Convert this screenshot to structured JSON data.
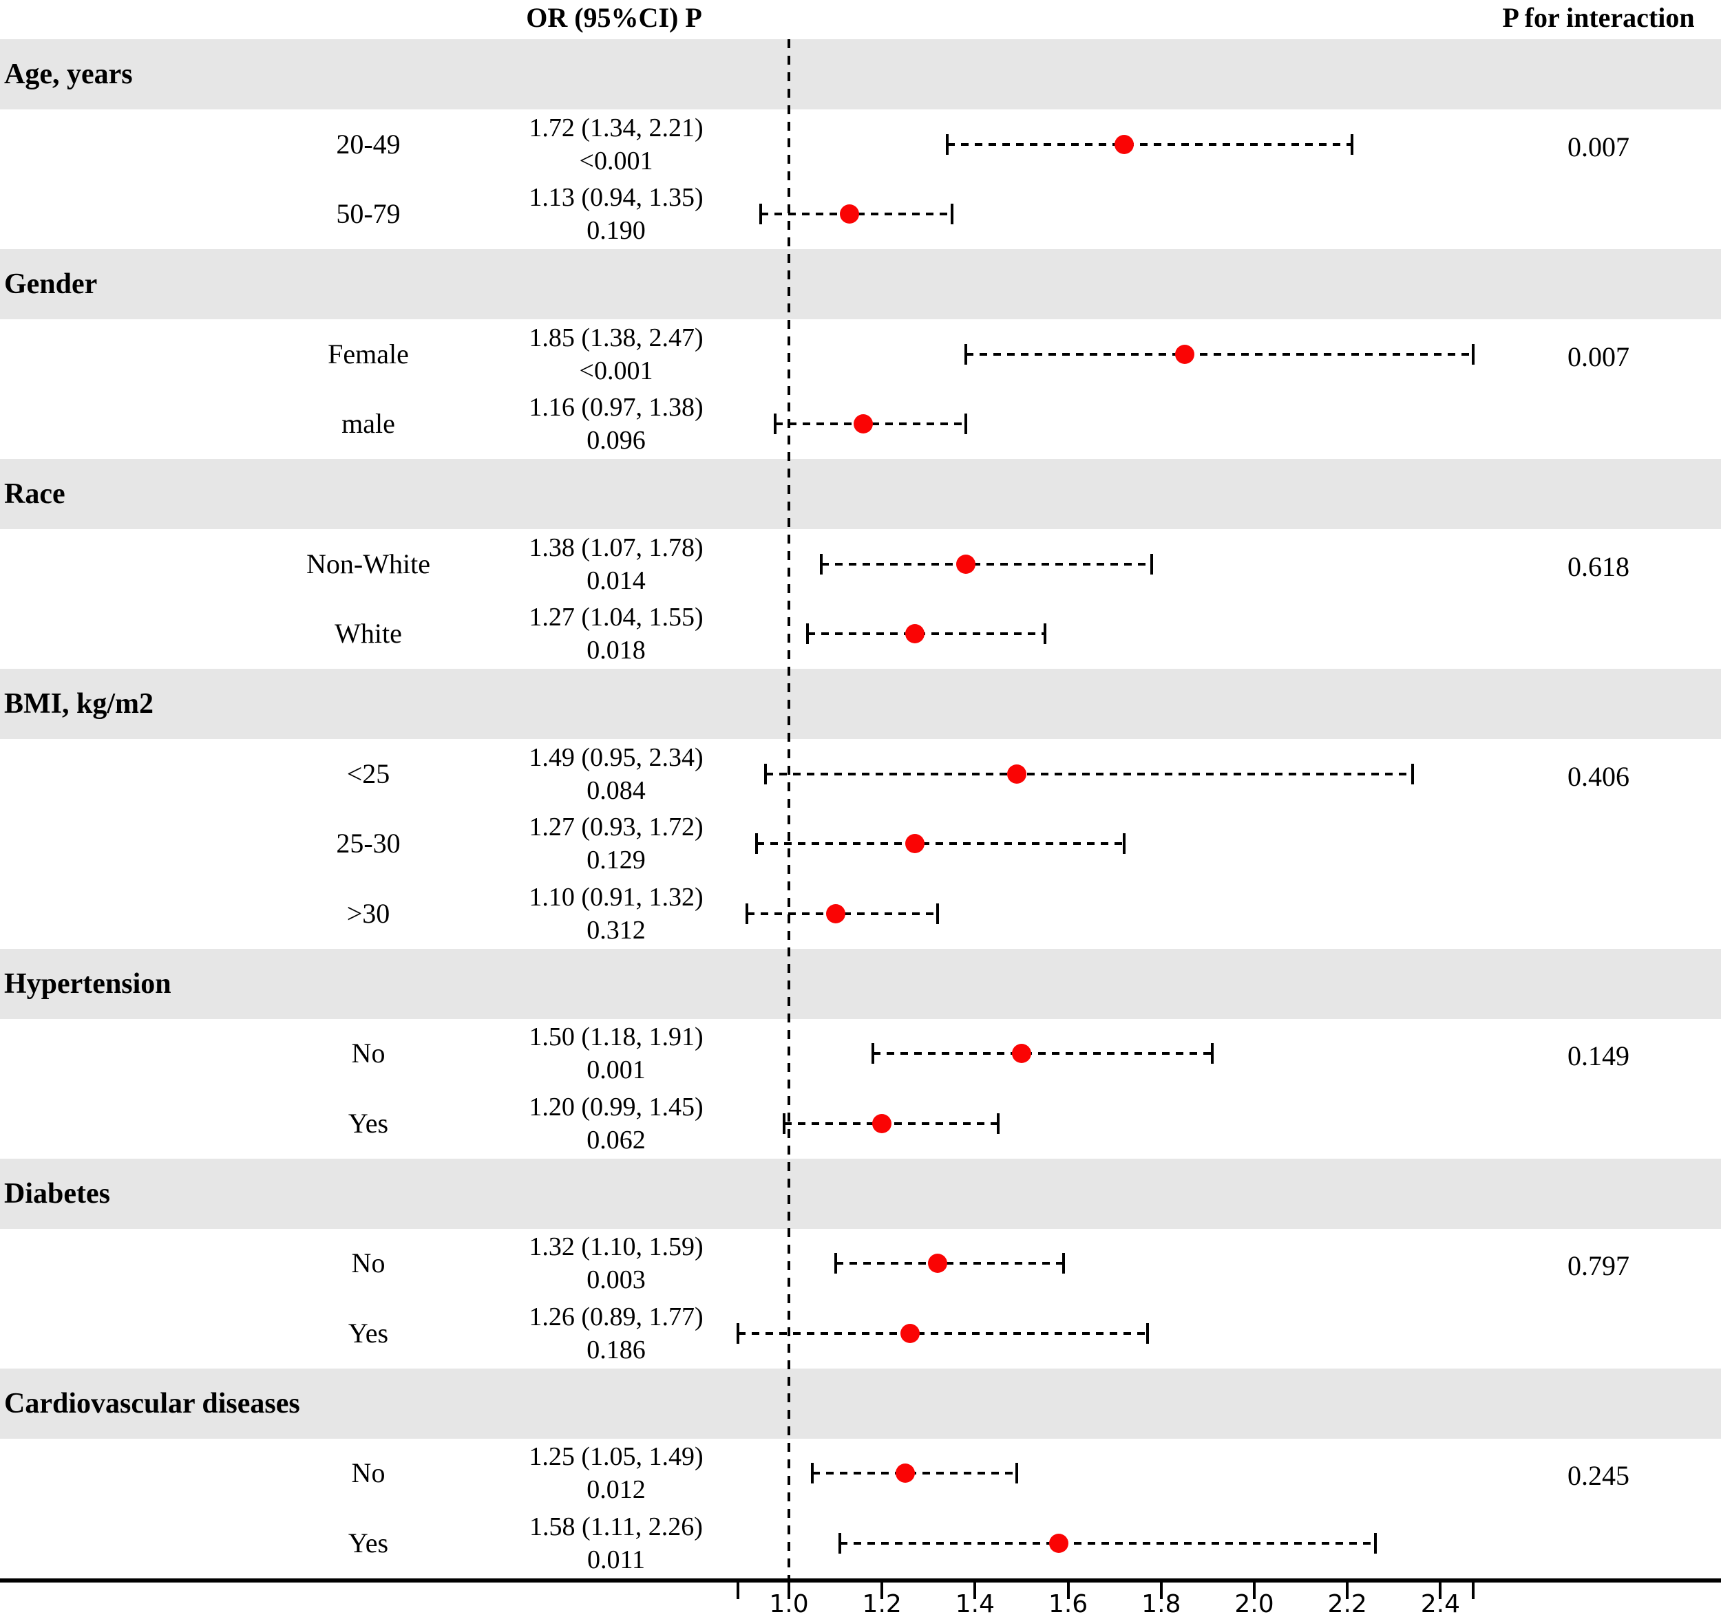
{
  "colors": {
    "marker_red": "#fa0404",
    "band_gray": "#e6e6e6",
    "line_black": "#000000",
    "background": "#ffffff"
  },
  "chart_data": {
    "type": "scatter",
    "variant": "forest-plot",
    "title": "",
    "xlabel": "",
    "legend": "none",
    "grid": "off",
    "columns": {
      "or_header": "OR (95%CI) P",
      "p_interaction_header": "P for interaction"
    },
    "x_axis": {
      "tick_values": [
        1.0,
        1.2,
        1.4,
        1.6,
        1.8,
        2.0,
        2.2,
        2.4
      ],
      "tick_labels": [
        "1.0",
        "1.2",
        "1.4",
        "1.6",
        "1.8",
        "2.0",
        "2.2",
        "2.4"
      ],
      "end_tick_values": [
        0.89,
        2.47
      ],
      "range": [
        0.89,
        2.47
      ],
      "reference_line": 1.0
    },
    "groups": [
      {
        "label": "Age, years",
        "p_interaction": "0.007",
        "rows": [
          {
            "label": "20-49",
            "or": 1.72,
            "ci_low": 1.34,
            "ci_high": 2.21,
            "or_ci_text": "1.72 (1.34, 2.21)",
            "p_text": "<0.001"
          },
          {
            "label": "50-79",
            "or": 1.13,
            "ci_low": 0.94,
            "ci_high": 1.35,
            "or_ci_text": "1.13 (0.94, 1.35)",
            "p_text": "0.190"
          }
        ]
      },
      {
        "label": "Gender",
        "p_interaction": "0.007",
        "rows": [
          {
            "label": "Female",
            "or": 1.85,
            "ci_low": 1.38,
            "ci_high": 2.47,
            "or_ci_text": "1.85 (1.38, 2.47)",
            "p_text": "<0.001"
          },
          {
            "label": "male",
            "or": 1.16,
            "ci_low": 0.97,
            "ci_high": 1.38,
            "or_ci_text": "1.16 (0.97, 1.38)",
            "p_text": "0.096"
          }
        ]
      },
      {
        "label": "Race",
        "p_interaction": "0.618",
        "rows": [
          {
            "label": "Non-White",
            "or": 1.38,
            "ci_low": 1.07,
            "ci_high": 1.78,
            "or_ci_text": "1.38 (1.07, 1.78)",
            "p_text": "0.014"
          },
          {
            "label": "White",
            "or": 1.27,
            "ci_low": 1.04,
            "ci_high": 1.55,
            "or_ci_text": "1.27 (1.04, 1.55)",
            "p_text": "0.018"
          }
        ]
      },
      {
        "label": "BMI, kg/m2",
        "p_interaction": "0.406",
        "rows": [
          {
            "label": "<25",
            "or": 1.49,
            "ci_low": 0.95,
            "ci_high": 2.34,
            "or_ci_text": "1.49 (0.95, 2.34)",
            "p_text": "0.084"
          },
          {
            "label": "25-30",
            "or": 1.27,
            "ci_low": 0.93,
            "ci_high": 1.72,
            "or_ci_text": "1.27 (0.93, 1.72)",
            "p_text": "0.129"
          },
          {
            "label": ">30",
            "or": 1.1,
            "ci_low": 0.91,
            "ci_high": 1.32,
            "or_ci_text": "1.10 (0.91, 1.32)",
            "p_text": "0.312"
          }
        ]
      },
      {
        "label": "Hypertension",
        "p_interaction": "0.149",
        "rows": [
          {
            "label": "No",
            "or": 1.5,
            "ci_low": 1.18,
            "ci_high": 1.91,
            "or_ci_text": "1.50 (1.18, 1.91)",
            "p_text": "0.001"
          },
          {
            "label": "Yes",
            "or": 1.2,
            "ci_low": 0.99,
            "ci_high": 1.45,
            "or_ci_text": "1.20 (0.99, 1.45)",
            "p_text": "0.062"
          }
        ]
      },
      {
        "label": "Diabetes",
        "p_interaction": "0.797",
        "rows": [
          {
            "label": "No",
            "or": 1.32,
            "ci_low": 1.1,
            "ci_high": 1.59,
            "or_ci_text": "1.32 (1.10, 1.59)",
            "p_text": "0.003"
          },
          {
            "label": "Yes",
            "or": 1.26,
            "ci_low": 0.89,
            "ci_high": 1.77,
            "or_ci_text": "1.26 (0.89, 1.77)",
            "p_text": "0.186"
          }
        ]
      },
      {
        "label": "Cardiovascular diseases",
        "p_interaction": "0.245",
        "rows": [
          {
            "label": "No",
            "or": 1.25,
            "ci_low": 1.05,
            "ci_high": 1.49,
            "or_ci_text": "1.25 (1.05, 1.49)",
            "p_text": "0.012"
          },
          {
            "label": "Yes",
            "or": 1.58,
            "ci_low": 1.11,
            "ci_high": 2.26,
            "or_ci_text": "1.58 (1.11, 2.26)",
            "p_text": "0.011"
          }
        ]
      }
    ]
  }
}
